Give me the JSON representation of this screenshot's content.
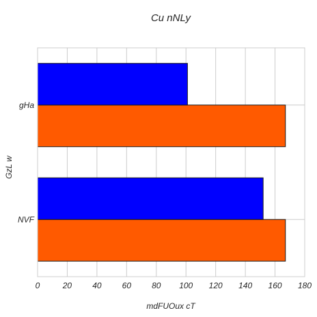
{
  "chart_data": {
    "type": "bar",
    "orientation": "horizontal",
    "title": "Cu nNLy",
    "xlabel": "mdFUOux cT",
    "ylabel": "GzL w",
    "categories": [
      "NVF",
      "gHa"
    ],
    "series": [
      {
        "values": [
          167,
          167
        ],
        "color": "#ff5a00"
      },
      {
        "values": [
          152,
          101
        ],
        "color": "#0000ff"
      }
    ],
    "xlim": [
      0,
      180
    ],
    "xticks": [
      "0",
      "20",
      "40",
      "60",
      "80",
      "100",
      "120",
      "140",
      "160",
      "180"
    ],
    "grid": true
  }
}
